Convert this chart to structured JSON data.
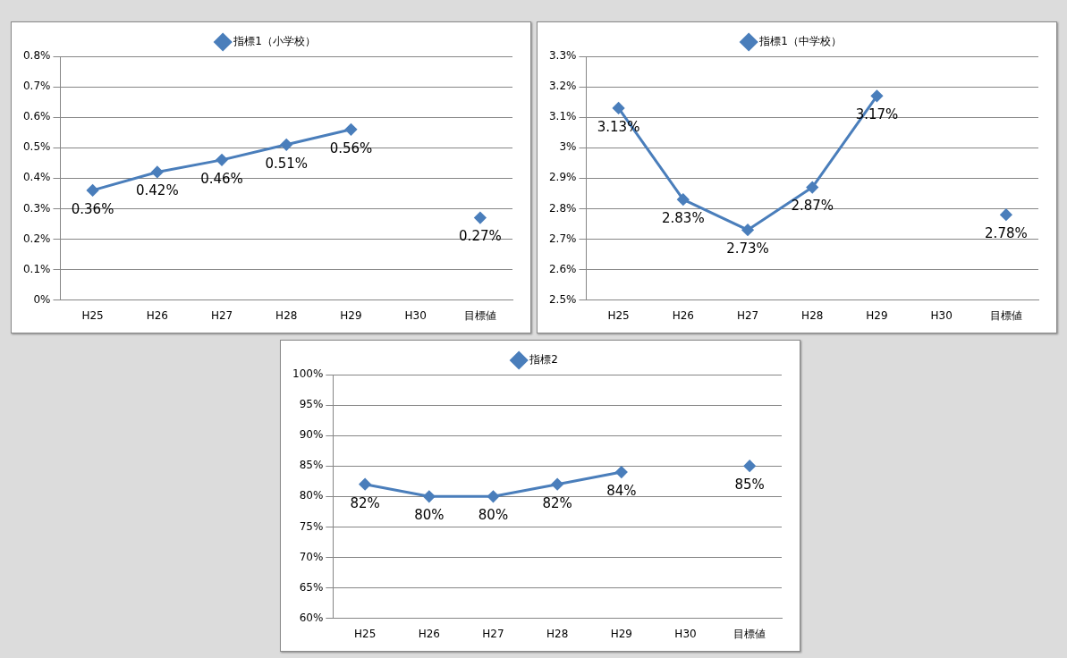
{
  "chart_data": [
    {
      "type": "line",
      "categories": [
        "H25",
        "H26",
        "H27",
        "H28",
        "H29",
        "H30",
        "目標値"
      ],
      "series": [
        {
          "name": "指標1（小学校）",
          "color": "#4a7ebb",
          "values": [
            0.36,
            0.42,
            0.46,
            0.51,
            0.56,
            null,
            0.27
          ],
          "value_labels": [
            "0.36%",
            "0.42%",
            "0.46%",
            "0.51%",
            "0.56%",
            null,
            "0.27%"
          ]
        }
      ],
      "ylim": [
        0,
        0.8
      ],
      "yticks": [
        {
          "value": 0,
          "label": "0%"
        },
        {
          "value": 0.1,
          "label": "0.1%"
        },
        {
          "value": 0.2,
          "label": "0.2%"
        },
        {
          "value": 0.3,
          "label": "0.3%"
        },
        {
          "value": 0.4,
          "label": "0.4%"
        },
        {
          "value": 0.5,
          "label": "0.5%"
        },
        {
          "value": 0.6,
          "label": "0.6%"
        },
        {
          "value": 0.7,
          "label": "0.7%"
        },
        {
          "value": 0.8,
          "label": "0.8%"
        }
      ],
      "grid": "y",
      "legend": "top",
      "marker": "diamond"
    },
    {
      "type": "line",
      "categories": [
        "H25",
        "H26",
        "H27",
        "H28",
        "H29",
        "H30",
        "目標値"
      ],
      "series": [
        {
          "name": "指標1（中学校）",
          "color": "#4a7ebb",
          "values": [
            3.13,
            2.83,
            2.73,
            2.87,
            3.17,
            null,
            2.78
          ],
          "value_labels": [
            "3.13%",
            "2.83%",
            "2.73%",
            "2.87%",
            "3.17%",
            null,
            "2.78%"
          ]
        }
      ],
      "ylim": [
        2.5,
        3.3
      ],
      "yticks": [
        {
          "value": 2.5,
          "label": "2.5%"
        },
        {
          "value": 2.6,
          "label": "2.6%"
        },
        {
          "value": 2.7,
          "label": "2.7%"
        },
        {
          "value": 2.8,
          "label": "2.8%"
        },
        {
          "value": 2.9,
          "label": "2.9%"
        },
        {
          "value": 3,
          "label": "3%"
        },
        {
          "value": 3.1,
          "label": "3.1%"
        },
        {
          "value": 3.2,
          "label": "3.2%"
        },
        {
          "value": 3.3,
          "label": "3.3%"
        }
      ],
      "grid": "y",
      "legend": "top",
      "marker": "diamond"
    },
    {
      "type": "line",
      "categories": [
        "H25",
        "H26",
        "H27",
        "H28",
        "H29",
        "H30",
        "目標値"
      ],
      "series": [
        {
          "name": "指標2",
          "color": "#4a7ebb",
          "values": [
            82,
            80,
            80,
            82,
            84,
            null,
            85
          ],
          "value_labels": [
            "82%",
            "80%",
            "80%",
            "82%",
            "84%",
            null,
            "85%"
          ]
        }
      ],
      "ylim": [
        60,
        100
      ],
      "yticks": [
        {
          "value": 60,
          "label": "60%"
        },
        {
          "value": 65,
          "label": "65%"
        },
        {
          "value": 70,
          "label": "70%"
        },
        {
          "value": 75,
          "label": "75%"
        },
        {
          "value": 80,
          "label": "80%"
        },
        {
          "value": 85,
          "label": "85%"
        },
        {
          "value": 90,
          "label": "90%"
        },
        {
          "value": 95,
          "label": "95%"
        },
        {
          "value": 100,
          "label": "100%"
        }
      ],
      "grid": "y",
      "legend": "top",
      "marker": "diamond"
    }
  ]
}
